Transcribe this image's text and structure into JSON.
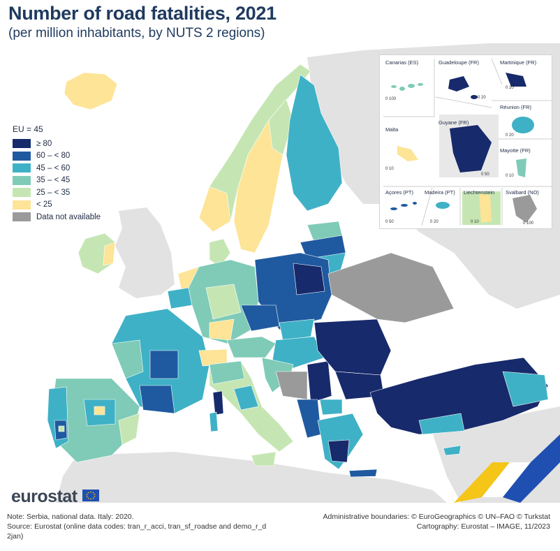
{
  "title": "Number of road fatalities, 2021",
  "subtitle": "(per million inhabitants, by NUTS 2 regions)",
  "legend": {
    "header": "EU = 45",
    "items": [
      {
        "label": "≥ 80",
        "color": "#172a6b"
      },
      {
        "label": "60 – < 80",
        "color": "#1f5aa0"
      },
      {
        "label": "45 – < 60",
        "color": "#3fb1c6"
      },
      {
        "label": "35 – < 45",
        "color": "#7fcbb7"
      },
      {
        "label": "25 – < 35",
        "color": "#c5e6b3"
      },
      {
        "label": "< 25",
        "color": "#fde496"
      },
      {
        "label": "Data not available",
        "color": "#9a9a9a"
      }
    ]
  },
  "insets": [
    {
      "name": "Canarias (ES)",
      "scale": "0   100"
    },
    {
      "name": "Guadeloupe (FR)",
      "scale": "0  20"
    },
    {
      "name": "Martinique (FR)",
      "scale": "0  20"
    },
    {
      "name": "Réunion (FR)",
      "scale": "0  20"
    },
    {
      "name": "Malta",
      "scale": "0   10"
    },
    {
      "name": "Guyane (FR)",
      "scale": "0  50"
    },
    {
      "name": "Mayotte (FR)",
      "scale": "0  10"
    },
    {
      "name": "Açores (PT)",
      "scale": "0   50"
    },
    {
      "name": "Madeira (PT)",
      "scale": "0  20"
    },
    {
      "name": "Liechtenstein",
      "scale": "0   10"
    },
    {
      "name": "Svalbard (NO)",
      "scale": "0 100"
    }
  ],
  "branding": {
    "logo": "eurostat"
  },
  "footer": {
    "note": "Note: Serbia, national data. Italy: 2020.",
    "source_line1": "Source: Eurostat (online data codes: tran_r_acci, tran_sf_roadse and demo_r_d",
    "source_line2": "2jan)",
    "boundaries": "Administrative boundaries: © EuroGeographics © UN–FAO © Turkstat",
    "cartography": "Cartography: Eurostat – IMAGE, 11/2023"
  }
}
